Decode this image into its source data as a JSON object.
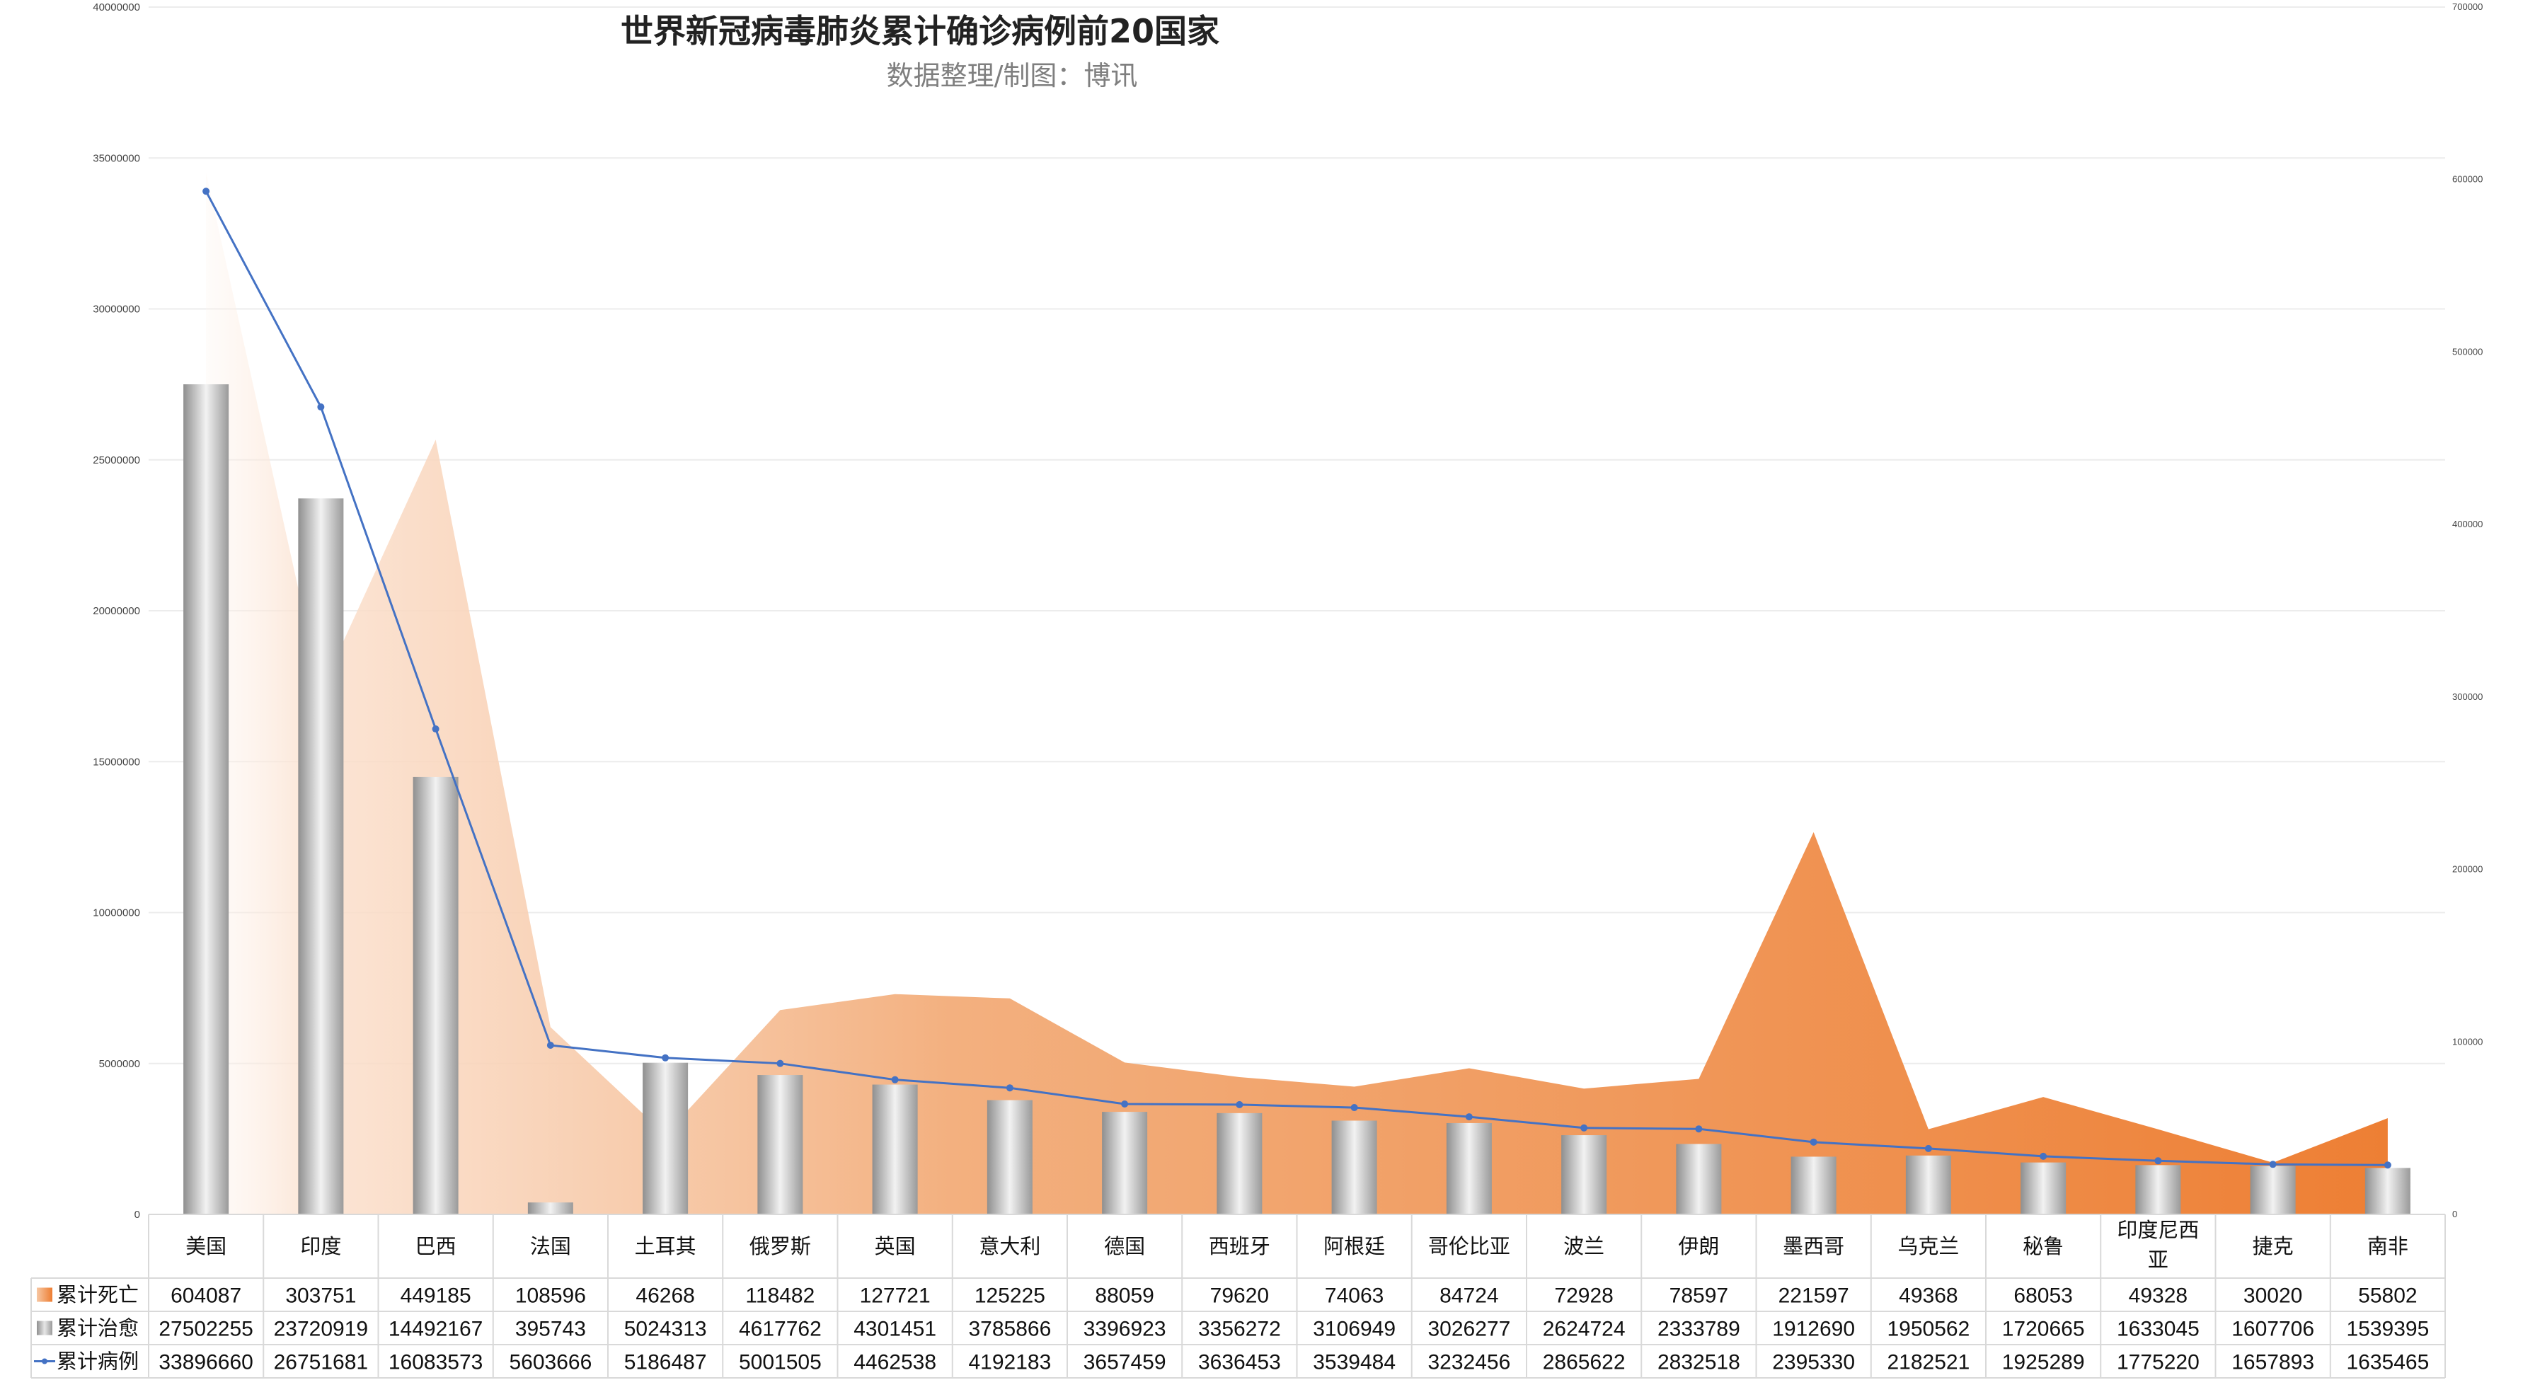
{
  "chart_data": {
    "type": "bar",
    "title": "世界新冠病毒肺炎累计确诊病例前20国家",
    "subtitle": "数据整理/制图：博讯",
    "categories": [
      "美国",
      "印度",
      "巴西",
      "法国",
      "土耳其",
      "俄罗斯",
      "英国",
      "意大利",
      "德国",
      "西班牙",
      "阿根廷",
      "哥伦比亚",
      "波兰",
      "伊朗",
      "墨西哥",
      "乌克兰",
      "秘鲁",
      "印度尼西亚",
      "捷克",
      "南非"
    ],
    "series": [
      {
        "name": "累计死亡",
        "chart": "area",
        "axis": "right",
        "color": "#ED7D31",
        "values": [
          604087,
          303751,
          449185,
          108596,
          46268,
          118482,
          127721,
          125225,
          88059,
          79620,
          74063,
          84724,
          72928,
          78597,
          221597,
          49368,
          68053,
          49328,
          30020,
          55802
        ]
      },
      {
        "name": "累计治愈",
        "chart": "bar",
        "axis": "left",
        "color": "#A5A5A5",
        "values": [
          27502255,
          23720919,
          14492167,
          395743,
          5024313,
          4617762,
          4301451,
          3785866,
          3396923,
          3356272,
          3106949,
          3026277,
          2624724,
          2333789,
          1912690,
          1950562,
          1720665,
          1633045,
          1607706,
          1539395
        ]
      },
      {
        "name": "累计病例",
        "chart": "line",
        "axis": "left",
        "color": "#4472C4",
        "values": [
          33896660,
          26751681,
          16083573,
          5603666,
          5186487,
          5001505,
          4462538,
          4192183,
          3657459,
          3636453,
          3539484,
          3232456,
          2865622,
          2832518,
          2395330,
          2182521,
          1925289,
          1775220,
          1657893,
          1635465
        ]
      }
    ],
    "y_left": {
      "min": 0,
      "max": 40000000,
      "ticks": [
        "0",
        "5000000",
        "10000000",
        "15000000",
        "20000000",
        "25000000",
        "30000000",
        "35000000",
        "40000000"
      ]
    },
    "y_right": {
      "min": 0,
      "max": 700000,
      "ticks": [
        "0",
        "100000",
        "200000",
        "300000",
        "400000",
        "500000",
        "600000",
        "700000"
      ]
    },
    "grid": true,
    "legend": "data-table-bottom"
  }
}
